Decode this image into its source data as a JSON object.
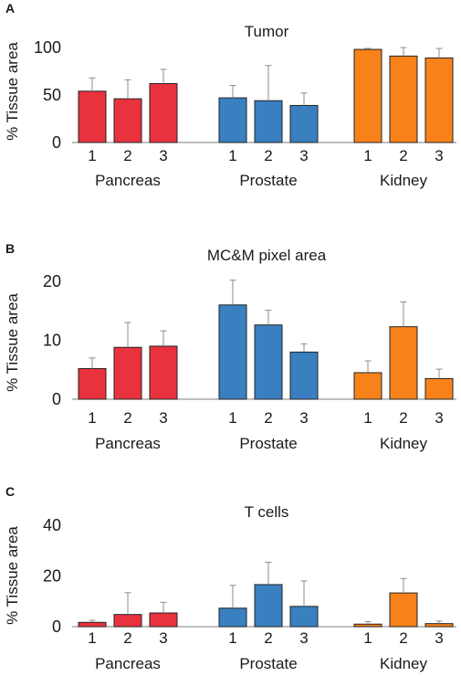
{
  "colors": {
    "pancreas": "#e8333f",
    "prostate": "#3a80c1",
    "kidney": "#f8821a",
    "error_bar": "#8c8c8c",
    "axis": "#7f7f7f"
  },
  "chart_data": [
    {
      "type": "bar",
      "panel": "A",
      "title": "Tumor",
      "ylabel": "% Tissue area",
      "xlabel": "",
      "ylim": [
        0,
        100
      ],
      "yticks": [
        0,
        50,
        100
      ],
      "groups": [
        {
          "name": "Pancreas",
          "categories": [
            "1",
            "2",
            "3"
          ],
          "values": [
            54,
            46,
            62
          ],
          "errors": [
            14,
            20,
            15
          ],
          "color": "#e8333f"
        },
        {
          "name": "Prostate",
          "categories": [
            "1",
            "2",
            "3"
          ],
          "values": [
            47,
            44,
            39
          ],
          "errors": [
            13,
            37,
            13
          ],
          "color": "#3a80c1"
        },
        {
          "name": "Kidney",
          "categories": [
            "1",
            "2",
            "3"
          ],
          "values": [
            98,
            91,
            89
          ],
          "errors": [
            1,
            9,
            10
          ],
          "color": "#f8821a"
        }
      ]
    },
    {
      "type": "bar",
      "panel": "B",
      "title": "MC&M pixel area",
      "ylabel": "% Tissue area",
      "xlabel": "",
      "ylim": [
        0,
        20
      ],
      "yticks": [
        0,
        10,
        20
      ],
      "groups": [
        {
          "name": "Pancreas",
          "categories": [
            "1",
            "2",
            "3"
          ],
          "values": [
            5.2,
            8.8,
            9.0
          ],
          "errors": [
            1.8,
            4.2,
            2.6
          ],
          "color": "#e8333f"
        },
        {
          "name": "Prostate",
          "categories": [
            "1",
            "2",
            "3"
          ],
          "values": [
            16.0,
            12.6,
            8.0
          ],
          "errors": [
            4.2,
            2.5,
            1.4
          ],
          "color": "#3a80c1"
        },
        {
          "name": "Kidney",
          "categories": [
            "1",
            "2",
            "3"
          ],
          "values": [
            4.5,
            12.3,
            3.5
          ],
          "errors": [
            2.0,
            4.2,
            1.6
          ],
          "color": "#f8821a"
        }
      ]
    },
    {
      "type": "bar",
      "panel": "C",
      "title": "T cells",
      "ylabel": "% Tissue area",
      "xlabel": "",
      "ylim": [
        0,
        40
      ],
      "yticks": [
        0,
        20,
        40
      ],
      "groups": [
        {
          "name": "Pancreas",
          "categories": [
            "1",
            "2",
            "3"
          ],
          "values": [
            1.7,
            4.8,
            5.4
          ],
          "errors": [
            0.8,
            8.6,
            4.2
          ],
          "color": "#e8333f"
        },
        {
          "name": "Prostate",
          "categories": [
            "1",
            "2",
            "3"
          ],
          "values": [
            7.3,
            16.6,
            8.0
          ],
          "errors": [
            9.0,
            8.8,
            10.0
          ],
          "color": "#3a80c1"
        },
        {
          "name": "Kidney",
          "categories": [
            "1",
            "2",
            "3"
          ],
          "values": [
            1.0,
            13.3,
            1.2
          ],
          "errors": [
            1.0,
            5.7,
            1.0
          ],
          "color": "#f8821a"
        }
      ]
    }
  ]
}
